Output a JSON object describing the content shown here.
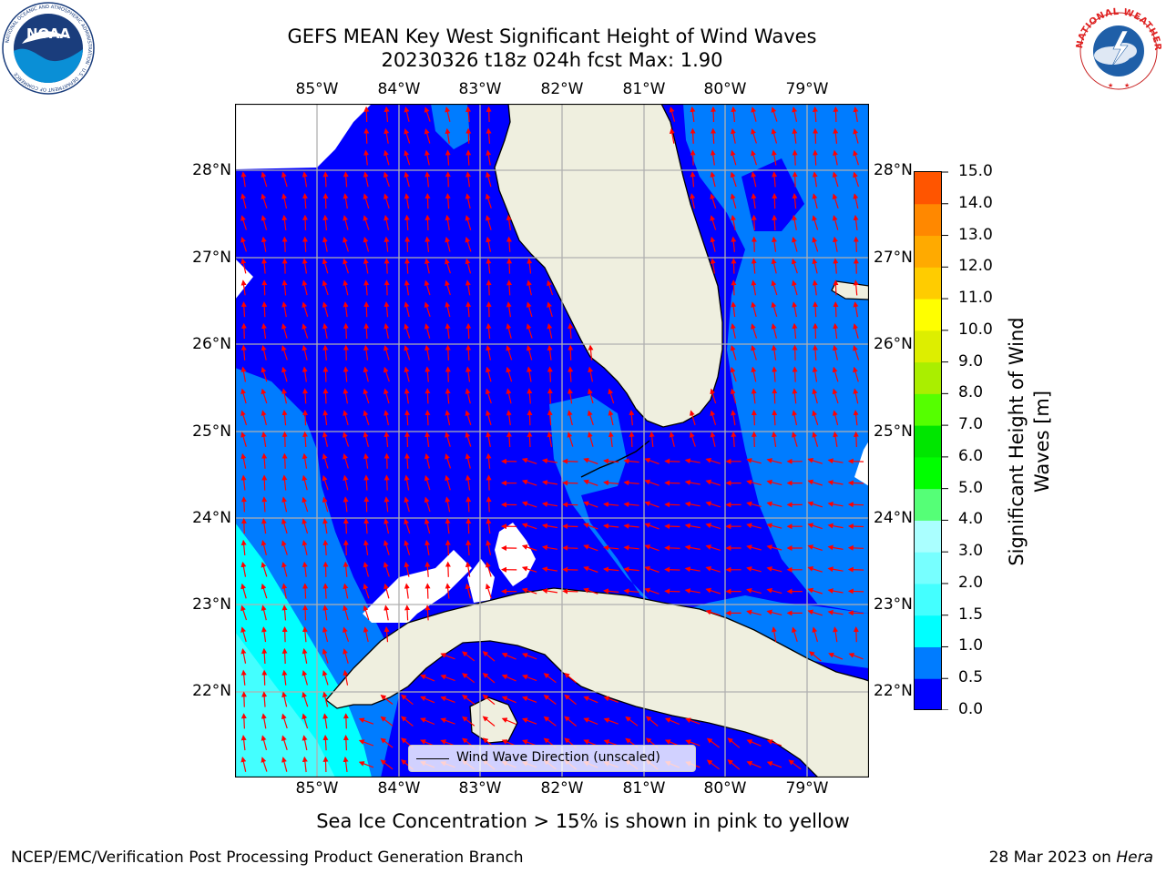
{
  "header": {
    "title_line1": "GEFS MEAN Key West Significant Height of Wind Waves",
    "title_line2": "20230326 t18z 024h fcst   Max: 1.90"
  },
  "logos": {
    "noaa_text": "NOAA",
    "noaa_ring_text": "NATIONAL OCEANIC AND ATMOSPHERIC ADMINISTRATION · U.S. DEPARTMENT OF COMMERCE",
    "nws_ring_text": "NATIONAL WEATHER SERVICE",
    "noaa_icon": "noaa-logo",
    "nws_icon": "nws-logo"
  },
  "map": {
    "lon_labels": [
      "85°W",
      "84°W",
      "83°W",
      "82°W",
      "81°W",
      "80°W",
      "79°W"
    ],
    "lat_labels": [
      "28°N",
      "27°N",
      "26°N",
      "25°N",
      "24°N",
      "23°N",
      "22°N"
    ],
    "extent": {
      "lon_min": -86.0,
      "lon_max": -78.25,
      "lat_min": 21.0,
      "lat_max": 28.75
    },
    "wave_direction": "north-northwest, turning westward near the Florida Keys and Cuba",
    "colors": {
      "land": "#efefdf",
      "coast": "#000000",
      "grid": "#b0b0b0",
      "arrow": "#ff0000"
    }
  },
  "colorbar": {
    "ticks": [
      "15.0",
      "14.0",
      "13.0",
      "12.0",
      "11.0",
      "10.0",
      "9.0",
      "8.0",
      "7.0",
      "6.0",
      "5.0",
      "4.0",
      "3.0",
      "2.0",
      "1.5",
      "1.0",
      "0.5",
      "0.0"
    ],
    "label_line1": "Significant Height of Wind",
    "label_line2": "Waves [m]",
    "colors": [
      "#0000ff",
      "#007cff",
      "#00ffff",
      "#44ffff",
      "#77ffff",
      "#aaffff",
      "#55ff77",
      "#00ff00",
      "#00e600",
      "#55ff00",
      "#aaee00",
      "#ddee00",
      "#ffff00",
      "#ffcc00",
      "#ffaa00",
      "#ff8800",
      "#ff5500",
      "#ff2200",
      "#ff0000"
    ]
  },
  "legend": {
    "label": "Wind Wave Direction (unscaled)"
  },
  "notes": {
    "sea_ice": "Sea Ice Concentration > 15% is shown in pink to yellow"
  },
  "footer": {
    "left": "NCEP/EMC/Verification Post Processing Product Generation Branch",
    "right_date": "28 Mar 2023 on ",
    "right_machine": "Hera"
  }
}
